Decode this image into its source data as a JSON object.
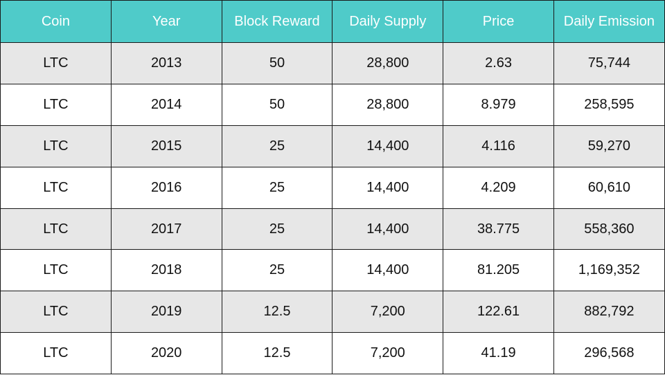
{
  "table": {
    "headers": [
      "Coin",
      "Year",
      "Block Reward",
      "Daily Supply",
      "Price",
      "Daily Emission"
    ],
    "rows": [
      [
        "LTC",
        "2013",
        "50",
        "28,800",
        "2.63",
        "75,744"
      ],
      [
        "LTC",
        "2014",
        "50",
        "28,800",
        "8.979",
        "258,595"
      ],
      [
        "LTC",
        "2015",
        "25",
        "14,400",
        "4.116",
        "59,270"
      ],
      [
        "LTC",
        "2016",
        "25",
        "14,400",
        "4.209",
        "60,610"
      ],
      [
        "LTC",
        "2017",
        "25",
        "14,400",
        "38.775",
        "558,360"
      ],
      [
        "LTC",
        "2018",
        "25",
        "14,400",
        "81.205",
        "1,169,352"
      ],
      [
        "LTC",
        "2019",
        "12.5",
        "7,200",
        "122.61",
        "882,792"
      ],
      [
        "LTC",
        "2020",
        "12.5",
        "7,200",
        "41.19",
        "296,568"
      ]
    ]
  },
  "colors": {
    "header_bg": "#4fcbc9",
    "header_text": "#ffffff",
    "row_shaded": "#e7e7e7",
    "row_plain": "#ffffff",
    "border": "#1a1a1a"
  }
}
